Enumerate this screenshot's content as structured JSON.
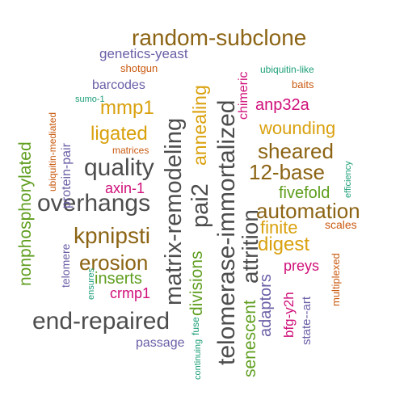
{
  "palette": {
    "brown": "#8c6414",
    "gray": "#4d4d4d",
    "green": "#5f9e1f",
    "purple": "#6a5fa6",
    "orange": "#c95a10",
    "magenta": "#d0107a",
    "teal": "#1b9e77",
    "gold": "#d9a10e"
  },
  "words": [
    {
      "text": "random-subclone",
      "color": "brown"
    },
    {
      "text": "genetics-yeast",
      "color": "purple"
    },
    {
      "text": "shotgun",
      "color": "orange"
    },
    {
      "text": "ubiquitin-like",
      "color": "teal"
    },
    {
      "text": "baits",
      "color": "orange"
    },
    {
      "text": "barcodes",
      "color": "purple"
    },
    {
      "text": "sumo-1",
      "color": "teal"
    },
    {
      "text": "mmp1",
      "color": "gold"
    },
    {
      "text": "anp32a",
      "color": "magenta"
    },
    {
      "text": "ligated",
      "color": "gold"
    },
    {
      "text": "wounding",
      "color": "gold"
    },
    {
      "text": "matrices",
      "color": "orange"
    },
    {
      "text": "sheared",
      "color": "brown"
    },
    {
      "text": "quality",
      "color": "gray"
    },
    {
      "text": "12-base",
      "color": "brown"
    },
    {
      "text": "axin-1",
      "color": "magenta"
    },
    {
      "text": "fivefold",
      "color": "green"
    },
    {
      "text": "overhangs",
      "color": "gray"
    },
    {
      "text": "automation",
      "color": "brown"
    },
    {
      "text": "finite",
      "color": "gold"
    },
    {
      "text": "kpnipsti",
      "color": "brown"
    },
    {
      "text": "scales",
      "color": "orange"
    },
    {
      "text": "digest",
      "color": "gold"
    },
    {
      "text": "erosion",
      "color": "brown"
    },
    {
      "text": "preys",
      "color": "magenta"
    },
    {
      "text": "inserts",
      "color": "green"
    },
    {
      "text": "crmp1",
      "color": "magenta"
    },
    {
      "text": "end-repaired",
      "color": "gray"
    },
    {
      "text": "passage",
      "color": "purple"
    },
    {
      "text": "nonphosphorylated",
      "color": "green"
    },
    {
      "text": "ubiquitin-mediated",
      "color": "orange"
    },
    {
      "text": "protein-pair",
      "color": "purple"
    },
    {
      "text": "telomere",
      "color": "purple"
    },
    {
      "text": "ensures",
      "color": "teal"
    },
    {
      "text": "matrix-remodeling",
      "color": "gray"
    },
    {
      "text": "pai2",
      "color": "gray"
    },
    {
      "text": "annealing",
      "color": "gold"
    },
    {
      "text": "divisions",
      "color": "green"
    },
    {
      "text": "fuse",
      "color": "teal"
    },
    {
      "text": "continuing",
      "color": "teal"
    },
    {
      "text": "telomerase-immortalized",
      "color": "gray"
    },
    {
      "text": "attrition",
      "color": "gray"
    },
    {
      "text": "chimeric",
      "color": "magenta"
    },
    {
      "text": "senescent",
      "color": "green"
    },
    {
      "text": "adaptors",
      "color": "purple"
    },
    {
      "text": "bfg-y2h",
      "color": "magenta"
    },
    {
      "text": "state--art",
      "color": "purple"
    },
    {
      "text": "multiplexed",
      "color": "orange"
    },
    {
      "text": "efficiency",
      "color": "teal"
    }
  ]
}
